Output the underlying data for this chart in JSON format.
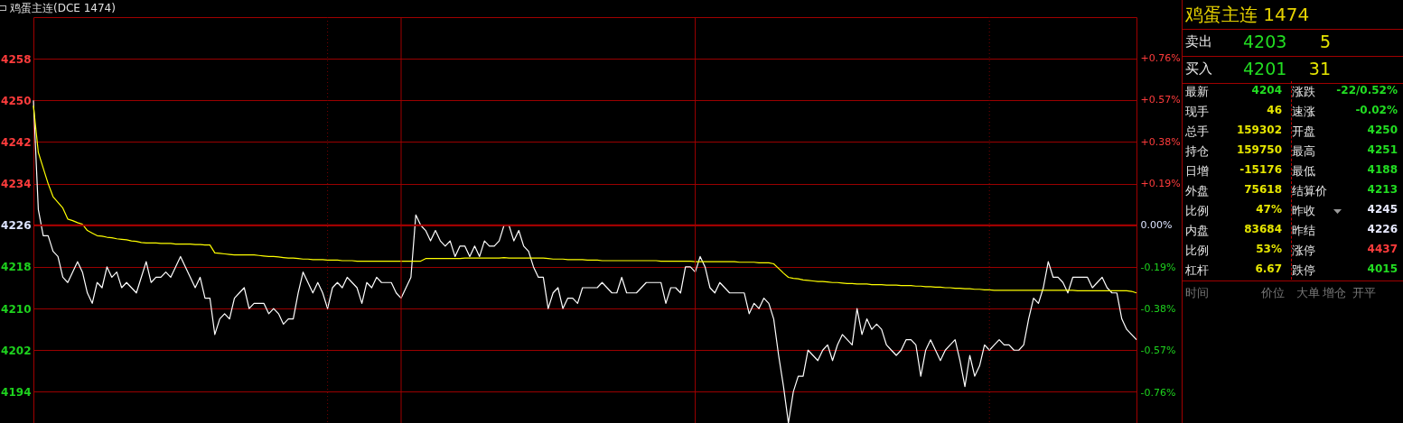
{
  "chart_data": [
    {
      "type": "line",
      "title": "鸡蛋主连(DCE 1474)",
      "categories": [
        null,
        null,
        null,
        null,
        null,
        null,
        null,
        null,
        null,
        null,
        null,
        null,
        null,
        null,
        null,
        null,
        null,
        null,
        null,
        null,
        null,
        null,
        null,
        null,
        null,
        null,
        null,
        null,
        null,
        null,
        null,
        null,
        null,
        null,
        null,
        null,
        null,
        null,
        null,
        null,
        null,
        null,
        null,
        null,
        null,
        null,
        null,
        null,
        null,
        null,
        null,
        null,
        null,
        null,
        null,
        null,
        null,
        null,
        null,
        null,
        null,
        null,
        null,
        null,
        null,
        null,
        null,
        null,
        null,
        null,
        null,
        null,
        null,
        null,
        null,
        null,
        null,
        null,
        null,
        null,
        null,
        null,
        null,
        null,
        null,
        null,
        null,
        null,
        null,
        null,
        null,
        null,
        null,
        null,
        null,
        null,
        null,
        null,
        null,
        null,
        null,
        null,
        null,
        null,
        null,
        null,
        null,
        null,
        null,
        null,
        null,
        null,
        null,
        null,
        null,
        null,
        null,
        null,
        null,
        null,
        null,
        null,
        null,
        null,
        null,
        null,
        null,
        null,
        null,
        null,
        null,
        null,
        null,
        null,
        null,
        null,
        null,
        null,
        null,
        null,
        null,
        null,
        null,
        null,
        null,
        null,
        null,
        null,
        null,
        null,
        null,
        null,
        null,
        null,
        null,
        null,
        null,
        null,
        null,
        null,
        null,
        null,
        null,
        null,
        null,
        null,
        null,
        null,
        null,
        null,
        null,
        null,
        null,
        null,
        null,
        null,
        null,
        null,
        null,
        null,
        null,
        null,
        null,
        null,
        null,
        null,
        null,
        null,
        null,
        null,
        null,
        null,
        null,
        null,
        null,
        null,
        null,
        null,
        null,
        null,
        null,
        null,
        null,
        null,
        null,
        null,
        null,
        null,
        null,
        null,
        null,
        null,
        null,
        null,
        null,
        null,
        null,
        null,
        null,
        null,
        null,
        null,
        null,
        null,
        null,
        null
      ],
      "ylim": [
        4188,
        4266
      ],
      "yticks": [
        4194,
        4202,
        4210,
        4218,
        4226,
        4234,
        4242,
        4250,
        4258
      ],
      "y2lim": [
        -0.899,
        0.947
      ],
      "y2ticks": [
        {
          "value": -0.76,
          "label": "-0.76%"
        },
        {
          "value": -0.57,
          "label": "-0.57%"
        },
        {
          "value": -0.38,
          "label": "-0.38%"
        },
        {
          "value": -0.19,
          "label": "-0.19%"
        },
        {
          "value": 0,
          "label": "0.00%"
        },
        {
          "value": 0.19,
          "label": "+0.19%"
        },
        {
          "value": 0.38,
          "label": "+0.38%"
        },
        {
          "value": 0.57,
          "label": "+0.57%"
        },
        {
          "value": 0.76,
          "label": "+0.76%"
        }
      ],
      "grid": "y",
      "tick_labels": "y",
      "ref_lines": [
        {
          "axis": "y2",
          "value": 0,
          "color": "#a00000"
        }
      ],
      "series": [
        {
          "color": "#ffffff",
          "values": [
            4250,
            4229,
            4224,
            4224,
            4221,
            4220,
            4216,
            4215,
            4217,
            4219,
            4217,
            4213,
            4211,
            4215,
            4214,
            4218,
            4216,
            4217,
            4214,
            4215,
            4214,
            4213,
            4216,
            4219,
            4215,
            4216,
            4216,
            4217,
            4216,
            4218,
            4220,
            4218,
            4216,
            4214,
            4216,
            4212,
            4212,
            4205,
            4208,
            4209,
            4208,
            4212,
            4213,
            4214,
            4210,
            4211,
            4211,
            4211,
            4209,
            4210,
            4209,
            4207,
            4208,
            4208,
            4213,
            4217,
            4215,
            4213,
            4215,
            4213,
            4210,
            4214,
            4215,
            4214,
            4216,
            4215,
            4214,
            4211,
            4215,
            4214,
            4216,
            4215,
            4215,
            4215,
            4213,
            4212,
            4214,
            4216,
            4228,
            4226,
            4225,
            4223,
            4225,
            4223,
            4222,
            4223,
            4220,
            4222,
            4222,
            4220,
            4222,
            4220,
            4223,
            4222,
            4222,
            4223,
            4226,
            4226,
            4223,
            4225,
            4222,
            4221,
            4218,
            4216,
            4216,
            4210,
            4213,
            4214,
            4210,
            4212,
            4212,
            4211,
            4214,
            4214,
            4214,
            4214,
            4215,
            4214,
            4213,
            4213,
            4216,
            4213,
            4213,
            4213,
            4214,
            4215,
            4215,
            4215,
            4215,
            4211,
            4214,
            4214,
            4213,
            4218,
            4218,
            4217,
            4220,
            4218,
            4214,
            4213,
            4215,
            4214,
            4213,
            4213,
            4213,
            4213,
            4209,
            4211,
            4210,
            4212,
            4211,
            4208,
            4201,
            4195,
            4188,
            4194,
            4197,
            4197,
            4202,
            4201,
            4200,
            4202,
            4203,
            4200,
            4203,
            4205,
            4204,
            4203,
            4210,
            4205,
            4208,
            4206,
            4207,
            4206,
            4203,
            4202,
            4201,
            4202,
            4204,
            4204,
            4203,
            4197,
            4202,
            4204,
            4202,
            4200,
            4202,
            4203,
            4204,
            4200,
            4195,
            4201,
            4197,
            4199,
            4203,
            4202,
            4203,
            4204,
            4203,
            4203,
            4202,
            4202,
            4203,
            4208,
            4212,
            4211,
            4214,
            4219,
            4216,
            4216,
            4215,
            4213,
            4216,
            4216,
            4216,
            4216,
            4214,
            4215,
            4216,
            4214,
            4213,
            4213,
            4208,
            4206,
            4205,
            4204
          ]
        },
        {
          "color": "#ffff00",
          "values": [
            4249,
            4240,
            4237,
            4234,
            4231.5,
            4230.4,
            4229.3,
            4227.2,
            4226.9,
            4226.5,
            4226.2,
            4225,
            4224.5,
            4224,
            4223.9,
            4223.7,
            4223.6,
            4223.4,
            4223.3,
            4223.2,
            4223,
            4222.9,
            4222.7,
            4222.6,
            4222.6,
            4222.6,
            4222.5,
            4222.5,
            4222.5,
            4222.4,
            4222.4,
            4222.4,
            4222.4,
            4222.3,
            4222.3,
            4222.2,
            4222.2,
            4220.7,
            4220.6,
            4220.5,
            4220.4,
            4220.3,
            4220.3,
            4220.3,
            4220.3,
            4220.3,
            4220.2,
            4220.1,
            4220,
            4220,
            4219.9,
            4219.8,
            4219.7,
            4219.7,
            4219.6,
            4219.5,
            4219.5,
            4219.4,
            4219.4,
            4219.4,
            4219.3,
            4219.3,
            4219.3,
            4219.2,
            4219.2,
            4219.2,
            4219.1,
            4219.1,
            4219.1,
            4219.1,
            4219.1,
            4219.1,
            4219.1,
            4219.1,
            4219.1,
            4219.1,
            4219.1,
            4219.1,
            4219.1,
            4219.1,
            4219.6,
            4219.6,
            4219.6,
            4219.6,
            4219.6,
            4219.6,
            4219.6,
            4219.6,
            4219.7,
            4219.7,
            4219.7,
            4219.7,
            4219.7,
            4219.7,
            4219.7,
            4219.7,
            4219.8,
            4219.7,
            4219.7,
            4219.7,
            4219.7,
            4219.7,
            4219.7,
            4219.7,
            4219.7,
            4219.6,
            4219.5,
            4219.5,
            4219.5,
            4219.4,
            4219.4,
            4219.4,
            4219.4,
            4219.3,
            4219.3,
            4219.3,
            4219.2,
            4219.2,
            4219.2,
            4219.2,
            4219.2,
            4219.2,
            4219.2,
            4219.2,
            4219.2,
            4219.2,
            4219.2,
            4219.2,
            4219.1,
            4219.1,
            4219.1,
            4219.1,
            4219.1,
            4219.1,
            4219.1,
            4219,
            4219,
            4219,
            4219,
            4219,
            4219,
            4219,
            4219,
            4219,
            4218.9,
            4218.9,
            4218.9,
            4218.9,
            4218.8,
            4218.8,
            4218.8,
            4218.6,
            4217.7,
            4216.8,
            4216,
            4215.8,
            4215.7,
            4215.5,
            4215.4,
            4215.3,
            4215.2,
            4215.2,
            4215.1,
            4215,
            4215,
            4214.9,
            4214.8,
            4214.8,
            4214.7,
            4214.7,
            4214.7,
            4214.6,
            4214.6,
            4214.6,
            4214.5,
            4214.5,
            4214.5,
            4214.4,
            4214.4,
            4214.4,
            4214.3,
            4214.3,
            4214.2,
            4214.2,
            4214.1,
            4214.1,
            4214,
            4214,
            4213.9,
            4213.9,
            4213.8,
            4213.8,
            4213.7,
            4213.7,
            4213.6,
            4213.6,
            4213.5,
            4213.5,
            4213.5,
            4213.5,
            4213.5,
            4213.5,
            4213.5,
            4213.5,
            4213.5,
            4213.5,
            4213.5,
            4213.5,
            4213.5,
            4213.5,
            4213.5,
            4213.5,
            4213.5,
            4213.4,
            4213.4,
            4213.4,
            4213.4,
            4213.4,
            4213.4,
            4213.4,
            4213.4,
            4213.4,
            4213.4,
            4213.4,
            4213.3,
            4213
          ]
        }
      ]
    },
    {
      "type": "other",
      "title": "鸡蛋主连 1474",
      "annotations": [
        "卖出",
        "4203",
        "5",
        "买入",
        "4201",
        "31",
        "最新",
        "4204",
        "涨跌",
        "-22/0.52%",
        "现手",
        "46",
        "速涨",
        "-0.02%",
        "总手",
        "159302",
        "开盘",
        "4250",
        "持仓",
        "159750",
        "最高",
        "4251",
        "日增",
        "-15176",
        "最低",
        "4188",
        "外盘",
        "75618",
        "结算价",
        "4213",
        "比例",
        "47%",
        "昨收",
        "4245",
        "内盘",
        "83684",
        "昨结",
        "4226",
        "比例",
        "53%",
        "涨停",
        "4437",
        "杠杆",
        "6.67",
        "跌停",
        "4015",
        "时间",
        "价位",
        "大单",
        "增仓",
        "开平"
      ]
    }
  ]
}
